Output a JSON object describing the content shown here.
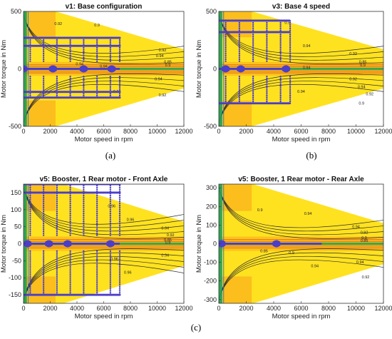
{
  "figure_label": "(c)",
  "colors": {
    "efficiency_fill": "#ffe21f",
    "low_efficiency_fill": "#f7a11a",
    "contour": "#2b2b2b",
    "operating_points": "#4b3ec9",
    "low_speed_band": "#1e9f55",
    "zero_torque_band": "#2b7fd0"
  },
  "chart_data": [
    {
      "type": "heatmap",
      "panel_label": "(a)",
      "title": "v1: Base configuration",
      "xlabel": "Motor speed in rpm",
      "ylabel": "Motor torque in Nm",
      "xlim": [
        0,
        12000
      ],
      "ylim": [
        -500,
        500
      ],
      "xticks": [
        0,
        2000,
        4000,
        6000,
        8000,
        10000,
        12000
      ],
      "yticks": [
        -500,
        0,
        500
      ],
      "torque_envelope": {
        "speed": [
          0,
          2400,
          12000
        ],
        "max_torque": [
          500,
          500,
          170
        ]
      },
      "contour_levels": [
        0.85,
        0.9,
        0.92,
        0.94
      ],
      "contour_label_positions": [
        {
          "x": 2600,
          "y": 390,
          "label": "0.92"
        },
        {
          "x": 5500,
          "y": 380,
          "label": "0.9"
        },
        {
          "x": 10200,
          "y": 110,
          "label": "0.94"
        },
        {
          "x": 10400,
          "y": 160,
          "label": "0.92"
        },
        {
          "x": 10800,
          "y": 60,
          "label": "0.85"
        },
        {
          "x": 10800,
          "y": 30,
          "label": "0.9"
        },
        {
          "x": 4200,
          "y": 40,
          "label": "0.94"
        },
        {
          "x": 6000,
          "y": 20,
          "label": "0.94"
        },
        {
          "x": 7000,
          "y": -200,
          "label": "0.94"
        },
        {
          "x": 10400,
          "y": -230,
          "label": "0.92"
        },
        {
          "x": 10100,
          "y": -90,
          "label": "0.94"
        }
      ],
      "operating_region": {
        "speed": [
          0,
          7200
        ],
        "torque": [
          -250,
          270
        ]
      },
      "operating_rows": [
        -250,
        -200,
        200,
        270
      ],
      "operating_columns": [
        500,
        1500,
        2500,
        3500,
        4500,
        5500,
        6500,
        7200
      ],
      "clusters": [
        {
          "x": 0,
          "y": 0
        },
        {
          "x": 2200,
          "y": 0
        },
        {
          "x": 4500,
          "y": 0
        },
        {
          "x": 6600,
          "y": 0
        }
      ]
    },
    {
      "type": "heatmap",
      "panel_label": "(b)",
      "title": "v3: Base 4 speed",
      "xlabel": "Motor speed in rpm",
      "ylabel": "Motor torque in Nm",
      "xlim": [
        0,
        12000
      ],
      "ylim": [
        -500,
        500
      ],
      "xticks": [
        0,
        2000,
        4000,
        6000,
        8000,
        10000,
        12000
      ],
      "yticks": [
        -500,
        0,
        500
      ],
      "torque_envelope": {
        "speed": [
          0,
          2400,
          12000
        ],
        "max_torque": [
          500,
          500,
          170
        ]
      },
      "contour_levels": [
        0.85,
        0.9,
        0.92,
        0.94
      ],
      "contour_label_positions": [
        {
          "x": 5000,
          "y": 400,
          "label": "0.9"
        },
        {
          "x": 6400,
          "y": 200,
          "label": "0.94"
        },
        {
          "x": 9800,
          "y": 130,
          "label": "0.92"
        },
        {
          "x": 10500,
          "y": 60,
          "label": "0.85"
        },
        {
          "x": 10500,
          "y": 30,
          "label": "0.9"
        },
        {
          "x": 6400,
          "y": 10,
          "label": "0.94"
        },
        {
          "x": 9800,
          "y": -90,
          "label": "0.92"
        },
        {
          "x": 10400,
          "y": -160,
          "label": "0.94"
        },
        {
          "x": 11000,
          "y": -220,
          "label": "0.92"
        },
        {
          "x": 10400,
          "y": -300,
          "label": "0.9"
        },
        {
          "x": 6000,
          "y": -200,
          "label": "0.94"
        }
      ],
      "operating_region": {
        "speed": [
          0,
          5200
        ],
        "torque": [
          -300,
          420
        ]
      },
      "operating_rows": [
        -300,
        320,
        420
      ],
      "operating_columns": [
        500,
        1500,
        2500,
        3500,
        4500,
        5200
      ],
      "clusters": [
        {
          "x": 500,
          "y": 0
        },
        {
          "x": 1600,
          "y": 0
        },
        {
          "x": 4900,
          "y": 0
        }
      ]
    },
    {
      "type": "heatmap",
      "panel_label": "",
      "title": "v5: Booster, 1 Rear motor - Front Axle",
      "xlabel": "Motor speed in rpm",
      "ylabel": "Motor torque in Nm",
      "xlim": [
        0,
        12000
      ],
      "ylim": [
        -175,
        175
      ],
      "xticks": [
        0,
        2000,
        4000,
        6000,
        8000,
        10000,
        12000
      ],
      "yticks": [
        -150,
        -100,
        -50,
        0,
        50,
        100,
        150
      ],
      "torque_envelope": {
        "speed": [
          0,
          3000,
          12000
        ],
        "max_torque": [
          175,
          175,
          65
        ]
      },
      "contour_levels": [
        0.85,
        0.9,
        0.92,
        0.94,
        0.96
      ],
      "contour_label_positions": [
        {
          "x": 6600,
          "y": 110,
          "label": "0.96"
        },
        {
          "x": 8000,
          "y": 70,
          "label": "0.96"
        },
        {
          "x": 10600,
          "y": 45,
          "label": "0.94"
        },
        {
          "x": 11000,
          "y": 25,
          "label": "0.92"
        },
        {
          "x": 10800,
          "y": 10,
          "label": "0.85"
        },
        {
          "x": 10800,
          "y": 3,
          "label": "0.9"
        },
        {
          "x": 6800,
          "y": -45,
          "label": "0.96"
        },
        {
          "x": 10600,
          "y": -35,
          "label": "0.94"
        },
        {
          "x": 7800,
          "y": -85,
          "label": "0.96"
        }
      ],
      "operating_region": {
        "speed": [
          0,
          7200
        ],
        "torque": [
          -150,
          175
        ]
      },
      "operating_rows": [
        -150,
        150,
        175
      ],
      "operating_columns": [
        500,
        1500,
        2500,
        3500,
        4500,
        5500,
        6500,
        7200
      ],
      "clusters": [
        {
          "x": 300,
          "y": 0
        },
        {
          "x": 3300,
          "y": 0
        },
        {
          "x": 6500,
          "y": 0
        },
        {
          "x": 1900,
          "y": 0
        }
      ]
    },
    {
      "type": "heatmap",
      "panel_label": "",
      "title": "v5: Booster, 1 Rear motor - Rear Axle",
      "xlabel": "Motor speed in rpm",
      "ylabel": "Motor torque in Nm",
      "xlim": [
        0,
        12000
      ],
      "ylim": [
        -320,
        320
      ],
      "xticks": [
        0,
        2000,
        4000,
        6000,
        8000,
        10000,
        12000
      ],
      "yticks": [
        -300,
        -200,
        -100,
        0,
        100,
        200,
        300
      ],
      "torque_envelope": {
        "speed": [
          0,
          2500,
          12000
        ],
        "max_torque": [
          320,
          320,
          110
        ]
      },
      "contour_levels": [
        0.85,
        0.9,
        0.92,
        0.94
      ],
      "contour_label_positions": [
        {
          "x": 3000,
          "y": 180,
          "label": "0.9"
        },
        {
          "x": 6500,
          "y": 160,
          "label": "0.94"
        },
        {
          "x": 10000,
          "y": 90,
          "label": "0.94"
        },
        {
          "x": 10600,
          "y": 60,
          "label": "0.92"
        },
        {
          "x": 10600,
          "y": 30,
          "label": "0.9"
        },
        {
          "x": 10600,
          "y": 15,
          "label": "0.85"
        },
        {
          "x": 3300,
          "y": -40,
          "label": "0.85"
        },
        {
          "x": 5300,
          "y": -50,
          "label": "0.9"
        },
        {
          "x": 7000,
          "y": -120,
          "label": "0.94"
        },
        {
          "x": 10300,
          "y": -100,
          "label": "0.94"
        },
        {
          "x": 10700,
          "y": -180,
          "label": "0.92"
        }
      ],
      "operating_region": {
        "speed": [
          0,
          7500
        ],
        "torque": [
          -10,
          60
        ]
      },
      "operating_rows": [],
      "operating_columns": [],
      "clusters": [
        {
          "x": 200,
          "y": 0
        },
        {
          "x": 4200,
          "y": 0
        }
      ]
    }
  ]
}
